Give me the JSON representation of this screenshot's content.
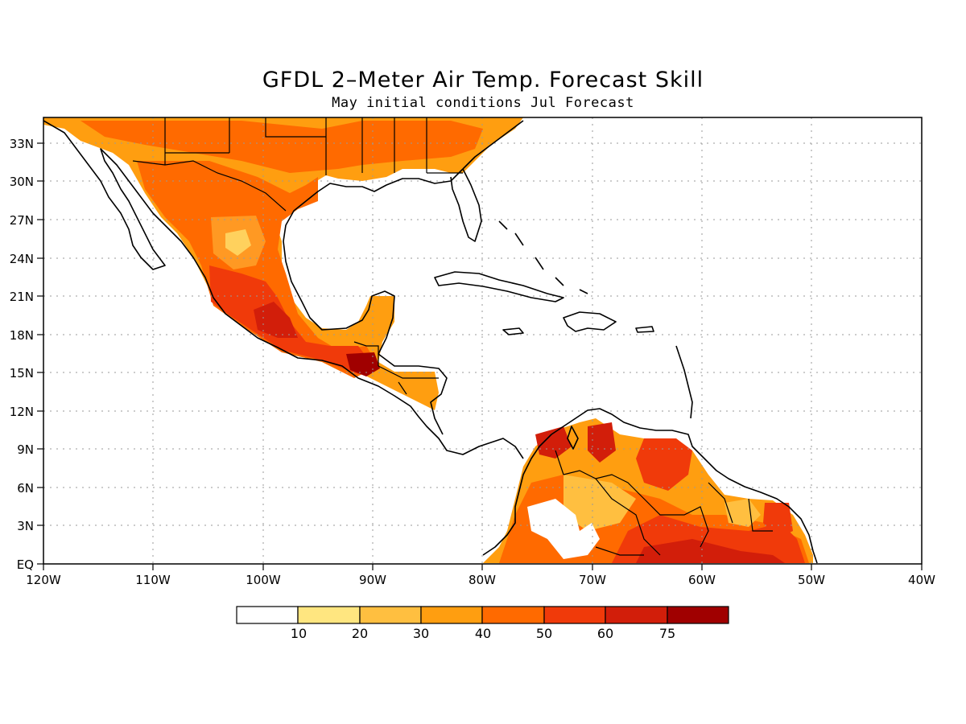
{
  "title": "GFDL 2–Meter Air Temp. Forecast Skill",
  "subtitle": "May initial conditions  Jul Forecast",
  "map": {
    "lon_range": [
      -120,
      -40
    ],
    "lat_range": [
      0,
      35
    ],
    "lon_labels": [
      "120W",
      "110W",
      "100W",
      "90W",
      "80W",
      "70W",
      "60W",
      "50W",
      "40W"
    ],
    "lat_labels": [
      "EQ",
      "3N",
      "6N",
      "9N",
      "12N",
      "15N",
      "18N",
      "21N",
      "24N",
      "27N",
      "30N",
      "33N"
    ],
    "grid": true,
    "coastlines": true
  },
  "colorbar": {
    "levels": [
      "10",
      "20",
      "30",
      "40",
      "50",
      "60",
      "75"
    ],
    "colors": [
      "#ffffff",
      "#ffe680",
      "#ffbf40",
      "#ff9e10",
      "#ff6a00",
      "#f03a0a",
      "#d21e0a",
      "#a00000"
    ]
  }
}
